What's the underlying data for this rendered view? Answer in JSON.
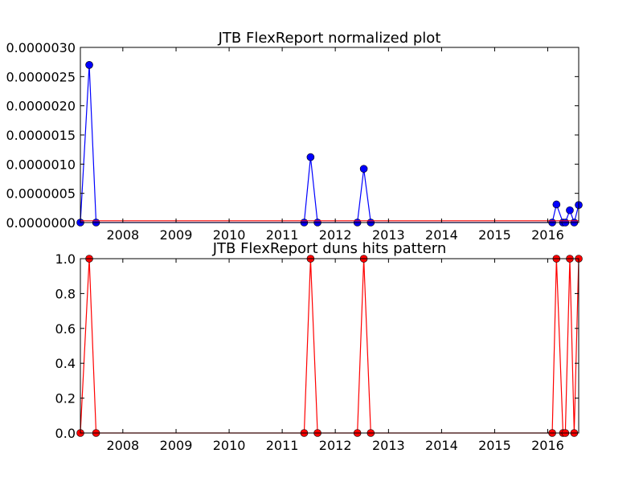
{
  "chart_data": [
    {
      "type": "line",
      "title": "JTB FlexReport normalized plot",
      "xlabel": "",
      "ylabel": "",
      "x_range": [
        "2007-03-15",
        "2016-08-01"
      ],
      "ylim": [
        0,
        3e-06
      ],
      "y_ticks": [
        0,
        5e-07,
        1e-06,
        1.5e-06,
        2e-06,
        2.5e-06,
        3e-06
      ],
      "y_tick_labels": [
        "0.0000000",
        "0.0000005",
        "0.0000010",
        "0.0000015",
        "0.0000020",
        "0.0000025",
        "0.0000030"
      ],
      "x_ticks": [
        "2008-01-01",
        "2009-01-01",
        "2010-01-01",
        "2011-01-01",
        "2012-01-01",
        "2013-01-01",
        "2014-01-01",
        "2015-01-01",
        "2016-01-01"
      ],
      "x_tick_labels": [
        "2008",
        "2009",
        "2010",
        "2011",
        "2012",
        "2013",
        "2014",
        "2015",
        "2016"
      ],
      "grid": false,
      "series": [
        {
          "color": "#0000ff",
          "marker": "circle",
          "points": [
            [
              "2007-03-15",
              0
            ],
            [
              "2007-05-15",
              2.7e-06
            ],
            [
              "2007-07-01",
              0
            ],
            [
              "2011-06-01",
              0
            ],
            [
              "2011-07-15",
              1.12e-06
            ],
            [
              "2011-09-01",
              0
            ],
            [
              "2012-06-01",
              0
            ],
            [
              "2012-07-15",
              9.2e-07
            ],
            [
              "2012-09-01",
              0
            ],
            [
              "2016-02-01",
              0
            ],
            [
              "2016-03-01",
              3.1e-07
            ],
            [
              "2016-04-15",
              0
            ],
            [
              "2016-05-01",
              0
            ],
            [
              "2016-06-01",
              2.1e-07
            ],
            [
              "2016-07-01",
              0
            ],
            [
              "2016-08-01",
              3e-07
            ]
          ]
        },
        {
          "color": "#ff0000",
          "marker": "none",
          "points": [
            [
              "2007-03-15",
              3e-08
            ],
            [
              "2016-08-01",
              3e-08
            ]
          ]
        }
      ]
    },
    {
      "type": "line",
      "title": "JTB FlexReport duns hits pattern",
      "xlabel": "",
      "ylabel": "",
      "x_range": [
        "2007-03-15",
        "2016-08-01"
      ],
      "ylim": [
        0,
        1
      ],
      "y_ticks": [
        0,
        0.2,
        0.4,
        0.6,
        0.8,
        1
      ],
      "y_tick_labels": [
        "0.0",
        "0.2",
        "0.4",
        "0.6",
        "0.8",
        "1.0"
      ],
      "x_ticks": [
        "2008-01-01",
        "2009-01-01",
        "2010-01-01",
        "2011-01-01",
        "2012-01-01",
        "2013-01-01",
        "2014-01-01",
        "2015-01-01",
        "2016-01-01"
      ],
      "x_tick_labels": [
        "2008",
        "2009",
        "2010",
        "2011",
        "2012",
        "2013",
        "2014",
        "2015",
        "2016"
      ],
      "grid": false,
      "series": [
        {
          "color": "#ff0000",
          "marker": "circle",
          "points": [
            [
              "2007-03-15",
              0
            ],
            [
              "2007-05-15",
              1
            ],
            [
              "2007-07-01",
              0
            ],
            [
              "2011-06-01",
              0
            ],
            [
              "2011-07-15",
              1
            ],
            [
              "2011-09-01",
              0
            ],
            [
              "2012-06-01",
              0
            ],
            [
              "2012-07-15",
              1
            ],
            [
              "2012-09-01",
              0
            ],
            [
              "2016-02-01",
              0
            ],
            [
              "2016-03-01",
              1
            ],
            [
              "2016-04-15",
              0
            ],
            [
              "2016-05-01",
              0
            ],
            [
              "2016-06-01",
              1
            ],
            [
              "2016-07-01",
              0
            ],
            [
              "2016-08-01",
              1
            ]
          ]
        }
      ]
    }
  ]
}
